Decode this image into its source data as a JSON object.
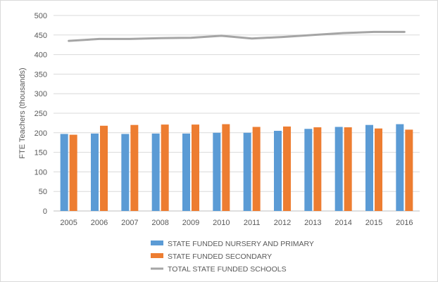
{
  "chart_data": {
    "type": "bar",
    "ylabel": "FTE Teachers (thousands)",
    "xlabel": "",
    "ylim": [
      0,
      500
    ],
    "ytick_step": 50,
    "grid": true,
    "legend_position": "bottom",
    "categories": [
      "2005",
      "2006",
      "2007",
      "2008",
      "2009",
      "2010",
      "2011",
      "2012",
      "2013",
      "2014",
      "2015",
      "2016"
    ],
    "series": [
      {
        "name": "STATE FUNDED NURSERY AND PRIMARY",
        "type": "bar",
        "color": "#5b9bd5",
        "values": [
          197,
          198,
          197,
          198,
          198,
          200,
          200,
          205,
          210,
          215,
          220,
          222
        ]
      },
      {
        "name": "STATE FUNDED SECONDARY",
        "type": "bar",
        "color": "#ed7d31",
        "values": [
          195,
          218,
          220,
          221,
          221,
          222,
          215,
          216,
          214,
          214,
          211,
          208
        ]
      },
      {
        "name": "TOTAL STATE FUNDED SCHOOLS",
        "type": "line",
        "color": "#a5a5a5",
        "values": [
          435,
          440,
          440,
          442,
          443,
          448,
          441,
          445,
          450,
          455,
          458,
          458
        ]
      }
    ]
  }
}
